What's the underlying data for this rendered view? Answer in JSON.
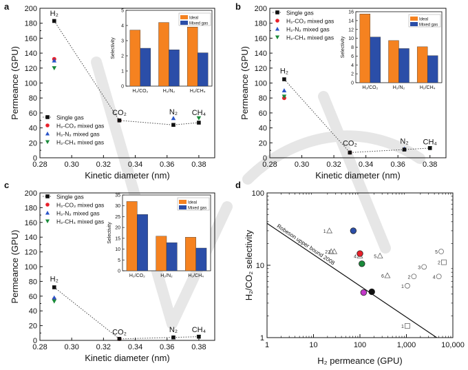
{
  "colors": {
    "single": "#111111",
    "co2_mix": "#e8202a",
    "n2_mix": "#2a55c9",
    "ch4_mix": "#1a8a3a",
    "ideal": "#f58220",
    "mixed": "#2b4ea8",
    "watermark": "#c9c9c9"
  },
  "chart_data": [
    {
      "panel": "a",
      "type": "scatter",
      "xlabel": "Kinetic diameter (nm)",
      "ylabel": "Permeance (GPU)",
      "xlim": [
        0.28,
        0.39
      ],
      "ylim": [
        0,
        200
      ],
      "xticks": [
        "0.28",
        "0.30",
        "0.32",
        "0.34",
        "0.36",
        "0.38"
      ],
      "yticks": [
        "0",
        "20",
        "40",
        "60",
        "80",
        "100",
        "120",
        "140",
        "160",
        "180",
        "200"
      ],
      "gas_labels": [
        {
          "text": "H₂",
          "x": 0.289,
          "y": 190
        },
        {
          "text": "CO₂",
          "x": 0.33,
          "y": 57
        },
        {
          "text": "N₂",
          "x": 0.364,
          "y": 58
        },
        {
          "text": "CH₄",
          "x": 0.38,
          "y": 57
        }
      ],
      "series": [
        {
          "name": "Single gas",
          "marker": "square",
          "color_key": "single",
          "points": [
            [
              0.289,
              183
            ],
            [
              0.33,
              50
            ],
            [
              0.364,
              44
            ],
            [
              0.38,
              47
            ]
          ]
        },
        {
          "name": "H₂-CO₂ mixed gas",
          "marker": "circle",
          "color_key": "co2_mix",
          "points": [
            [
              0.289,
              132
            ],
            [
              0.33,
              50
            ]
          ]
        },
        {
          "name": "H₂-N₂ mixed gas",
          "marker": "triangle-up",
          "color_key": "n2_mix",
          "points": [
            [
              0.289,
              130
            ],
            [
              0.364,
              53
            ]
          ]
        },
        {
          "name": "H₂-CH₄ mixed gas",
          "marker": "triangle-down",
          "color_key": "ch4_mix",
          "points": [
            [
              0.289,
              120
            ],
            [
              0.38,
              53
            ]
          ]
        }
      ],
      "inset": {
        "type": "bar",
        "ylabel": "Selectivity",
        "ylim": [
          0,
          5
        ],
        "yticks": [
          "0",
          "1",
          "2",
          "3",
          "4",
          "5"
        ],
        "categories": [
          "H₂/CO₂",
          "H₂/N₂",
          "H₂/CH₄"
        ],
        "series": [
          {
            "name": "Ideal",
            "color_key": "ideal",
            "values": [
              3.7,
              4.2,
              3.9
            ]
          },
          {
            "name": "Mixed gas",
            "color_key": "mixed",
            "values": [
              2.5,
              2.4,
              2.2
            ]
          }
        ]
      }
    },
    {
      "panel": "b",
      "type": "scatter",
      "xlabel": "Kinetic diameter (nm)",
      "ylabel": "Permeance (GPU)",
      "xlim": [
        0.28,
        0.39
      ],
      "ylim": [
        0,
        200
      ],
      "xticks": [
        "0.28",
        "0.30",
        "0.32",
        "0.34",
        "0.36",
        "0.38"
      ],
      "yticks": [
        "0",
        "20",
        "40",
        "60",
        "80",
        "100",
        "120",
        "140",
        "160",
        "180",
        "200"
      ],
      "gas_labels": [
        {
          "text": "H₂",
          "x": 0.289,
          "y": 113
        },
        {
          "text": "CO₂",
          "x": 0.33,
          "y": 16
        },
        {
          "text": "N₂",
          "x": 0.364,
          "y": 19
        },
        {
          "text": "CH₄",
          "x": 0.38,
          "y": 18
        }
      ],
      "series": [
        {
          "name": "Single gas",
          "marker": "square",
          "color_key": "single",
          "points": [
            [
              0.289,
              105
            ],
            [
              0.33,
              7
            ],
            [
              0.364,
              11
            ],
            [
              0.38,
              13
            ]
          ]
        },
        {
          "name": "H₂-CO₂ mixed gas",
          "marker": "circle",
          "color_key": "co2_mix",
          "points": [
            [
              0.289,
              80
            ],
            [
              0.33,
              7
            ]
          ]
        },
        {
          "name": "H₂-N₂ mixed gas",
          "marker": "triangle-up",
          "color_key": "n2_mix",
          "points": [
            [
              0.289,
              90
            ],
            [
              0.364,
              12
            ]
          ]
        },
        {
          "name": "H₂-CH₄ mixed gas",
          "marker": "triangle-down",
          "color_key": "ch4_mix",
          "points": [
            [
              0.289,
              82
            ],
            [
              0.38,
              13
            ]
          ]
        }
      ],
      "inset": {
        "type": "bar",
        "ylabel": "Selectivity",
        "ylim": [
          0,
          16
        ],
        "yticks": [
          "0",
          "2",
          "4",
          "6",
          "8",
          "10",
          "12",
          "14",
          "16"
        ],
        "categories": [
          "H₂/CO₂",
          "H₂/N₂",
          "H₂/CH₄"
        ],
        "series": [
          {
            "name": "Ideal",
            "color_key": "ideal",
            "values": [
              15.5,
              9.5,
              8.1
            ]
          },
          {
            "name": "Mixed gas",
            "color_key": "mixed",
            "values": [
              10.3,
              7.7,
              6.1
            ]
          }
        ]
      }
    },
    {
      "panel": "c",
      "type": "scatter",
      "xlabel": "Kinetic diameter (nm)",
      "ylabel": "Permeance (GPU)",
      "xlim": [
        0.28,
        0.39
      ],
      "ylim": [
        0,
        200
      ],
      "xticks": [
        "0.28",
        "0.30",
        "0.32",
        "0.34",
        "0.36",
        "0.38"
      ],
      "yticks": [
        "0",
        "20",
        "40",
        "60",
        "80",
        "100",
        "120",
        "140",
        "160",
        "180",
        "200"
      ],
      "gas_labels": [
        {
          "text": "H₂",
          "x": 0.289,
          "y": 80
        },
        {
          "text": "CO₂",
          "x": 0.33,
          "y": 8
        },
        {
          "text": "N₂",
          "x": 0.364,
          "y": 11
        },
        {
          "text": "CH₄",
          "x": 0.38,
          "y": 11
        }
      ],
      "series": [
        {
          "name": "Single gas",
          "marker": "square",
          "color_key": "single",
          "points": [
            [
              0.289,
              72
            ],
            [
              0.33,
              2
            ],
            [
              0.364,
              4
            ],
            [
              0.38,
              5
            ]
          ]
        },
        {
          "name": "H₂-CO₂ mixed gas",
          "marker": "circle",
          "color_key": "co2_mix",
          "points": [
            [
              0.289,
              56
            ],
            [
              0.33,
              2
            ]
          ]
        },
        {
          "name": "H₂-N₂ mixed gas",
          "marker": "triangle-up",
          "color_key": "n2_mix",
          "points": [
            [
              0.289,
              58
            ],
            [
              0.364,
              4
            ]
          ]
        },
        {
          "name": "H₂-CH₄ mixed gas",
          "marker": "triangle-down",
          "color_key": "ch4_mix",
          "points": [
            [
              0.289,
              53
            ],
            [
              0.38,
              5
            ]
          ]
        }
      ],
      "inset": {
        "type": "bar",
        "ylabel": "Selectivity",
        "ylim": [
          0,
          35
        ],
        "yticks": [
          "0",
          "5",
          "10",
          "15",
          "20",
          "25",
          "30",
          "35"
        ],
        "categories": [
          "H₂/CO₂",
          "H₂/N₂",
          "H₂/CH₄"
        ],
        "series": [
          {
            "name": "Ideal",
            "color_key": "ideal",
            "values": [
              32,
              16,
              15.5
            ]
          },
          {
            "name": "Mixed gas",
            "color_key": "mixed",
            "values": [
              26,
              13,
              10.5
            ]
          }
        ]
      }
    },
    {
      "panel": "d",
      "type": "scatter",
      "xscale": "log",
      "yscale": "log",
      "xlabel": "H₂ permeance (GPU)",
      "ylabel": "H₂/CO₂ selectivity",
      "xlim": [
        1,
        10000
      ],
      "ylim": [
        1,
        100
      ],
      "xticks": [
        {
          "value": 1,
          "label": "1"
        },
        {
          "value": 10,
          "label": "10"
        },
        {
          "value": 100,
          "label": "100"
        },
        {
          "value": 1000,
          "label": "1,000"
        },
        {
          "value": 10000,
          "label": "10,000"
        }
      ],
      "yticks": [
        {
          "value": 1,
          "label": "1"
        },
        {
          "value": 10,
          "label": "10"
        },
        {
          "value": 100,
          "label": "100"
        }
      ],
      "upper_bound": {
        "label": "Robeson upper bound 2008",
        "points": [
          [
            1,
            38
          ],
          [
            4500,
            1
          ]
        ]
      },
      "filled_points": [
        {
          "x": 72,
          "y": 30,
          "color_key": "mixed"
        },
        {
          "x": 100,
          "y": 14.5,
          "color_key": "co2_mix"
        },
        {
          "x": 110,
          "y": 10.5,
          "color_key": "ch4_mix"
        },
        {
          "x": 120,
          "y": 4.2,
          "color_key": "purple"
        },
        {
          "x": 180,
          "y": 4.3,
          "color_key": "single"
        }
      ],
      "purple": "#c238c8",
      "literature_points": [
        {
          "label": "1",
          "marker": "triangle",
          "x": 22,
          "y": 30
        },
        {
          "label": "2",
          "marker": "triangle",
          "x": 24,
          "y": 15.5
        },
        {
          "label": "3",
          "marker": "triangle",
          "x": 28,
          "y": 15.5
        },
        {
          "label": "4",
          "marker": "triangle",
          "x": 100,
          "y": 13.5
        },
        {
          "label": "5",
          "marker": "triangle",
          "x": 270,
          "y": 13.5
        },
        {
          "label": "6",
          "marker": "triangle",
          "x": 390,
          "y": 7.2
        },
        {
          "label": "1",
          "marker": "circle",
          "x": 1050,
          "y": 5.2
        },
        {
          "label": "2",
          "marker": "circle",
          "x": 1450,
          "y": 7.0
        },
        {
          "label": "3",
          "marker": "circle",
          "x": 2400,
          "y": 9.5
        },
        {
          "label": "4",
          "marker": "circle",
          "x": 5000,
          "y": 7.0
        },
        {
          "label": "5",
          "marker": "circle",
          "x": 5600,
          "y": 15.5
        },
        {
          "label": "1",
          "marker": "square",
          "x": 1050,
          "y": 1.45
        },
        {
          "label": "2",
          "marker": "square",
          "x": 6400,
          "y": 11
        }
      ]
    }
  ]
}
